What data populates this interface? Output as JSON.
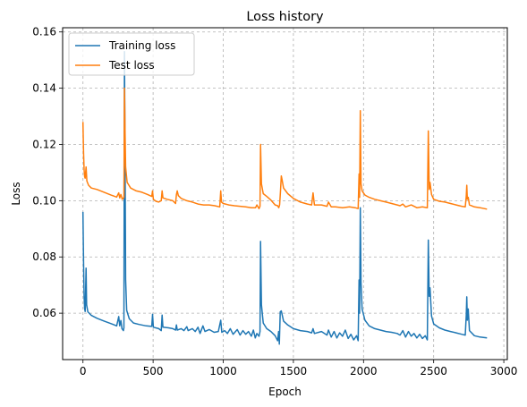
{
  "chart_data": {
    "type": "line",
    "title": "Loss history",
    "xlabel": "Epoch",
    "ylabel": "Loss",
    "xlim": [
      -145,
      3025
    ],
    "ylim": [
      0.0435,
      0.1615
    ],
    "xticks": [
      0,
      500,
      1000,
      1500,
      2000,
      2500,
      3000
    ],
    "xtick_labels": [
      "0",
      "500",
      "1000",
      "1500",
      "2000",
      "2500",
      "3000"
    ],
    "yticks": [
      0.06,
      0.08,
      0.1,
      0.12,
      0.14,
      0.16
    ],
    "ytick_labels": [
      "0.06",
      "0.08",
      "0.10",
      "0.12",
      "0.14",
      "0.16"
    ],
    "grid": true,
    "legend_position": "top-left",
    "colors": {
      "Training loss": "#1f77b4",
      "Test loss": "#ff7f0e"
    },
    "series": [
      {
        "name": "Training loss",
        "color": "#1f77b4",
        "points": [
          [
            0,
            0.096
          ],
          [
            4,
            0.078
          ],
          [
            8,
            0.066
          ],
          [
            12,
            0.0615
          ],
          [
            16,
            0.0606
          ],
          [
            22,
            0.076
          ],
          [
            26,
            0.063
          ],
          [
            35,
            0.0605
          ],
          [
            60,
            0.0592
          ],
          [
            100,
            0.0582
          ],
          [
            150,
            0.0572
          ],
          [
            200,
            0.0563
          ],
          [
            240,
            0.0555
          ],
          [
            255,
            0.0588
          ],
          [
            262,
            0.0555
          ],
          [
            270,
            0.0574
          ],
          [
            278,
            0.0545
          ],
          [
            288,
            0.0538
          ],
          [
            292,
            0.0548
          ],
          [
            296,
            0.153
          ],
          [
            300,
            0.115
          ],
          [
            304,
            0.072
          ],
          [
            312,
            0.061
          ],
          [
            330,
            0.058
          ],
          [
            360,
            0.0565
          ],
          [
            400,
            0.056
          ],
          [
            450,
            0.0555
          ],
          [
            490,
            0.0553
          ],
          [
            496,
            0.0596
          ],
          [
            502,
            0.055
          ],
          [
            540,
            0.0545
          ],
          [
            558,
            0.0538
          ],
          [
            564,
            0.0593
          ],
          [
            570,
            0.055
          ],
          [
            610,
            0.0548
          ],
          [
            640,
            0.0545
          ],
          [
            660,
            0.054
          ],
          [
            666,
            0.0558
          ],
          [
            672,
            0.054
          ],
          [
            700,
            0.0545
          ],
          [
            720,
            0.0538
          ],
          [
            740,
            0.0552
          ],
          [
            750,
            0.0538
          ],
          [
            780,
            0.0545
          ],
          [
            800,
            0.0535
          ],
          [
            820,
            0.055
          ],
          [
            835,
            0.0528
          ],
          [
            855,
            0.0555
          ],
          [
            870,
            0.0535
          ],
          [
            900,
            0.0542
          ],
          [
            935,
            0.0532
          ],
          [
            965,
            0.0535
          ],
          [
            982,
            0.0575
          ],
          [
            990,
            0.0532
          ],
          [
            1010,
            0.0538
          ],
          [
            1030,
            0.0528
          ],
          [
            1050,
            0.0545
          ],
          [
            1070,
            0.0525
          ],
          [
            1100,
            0.0542
          ],
          [
            1120,
            0.0522
          ],
          [
            1140,
            0.0538
          ],
          [
            1160,
            0.0525
          ],
          [
            1180,
            0.0535
          ],
          [
            1200,
            0.0518
          ],
          [
            1215,
            0.054
          ],
          [
            1228,
            0.0512
          ],
          [
            1240,
            0.0528
          ],
          [
            1255,
            0.0518
          ],
          [
            1262,
            0.0535
          ],
          [
            1266,
            0.0855
          ],
          [
            1272,
            0.063
          ],
          [
            1285,
            0.0565
          ],
          [
            1310,
            0.0545
          ],
          [
            1340,
            0.0535
          ],
          [
            1370,
            0.052
          ],
          [
            1388,
            0.0502
          ],
          [
            1395,
            0.0535
          ],
          [
            1400,
            0.049
          ],
          [
            1406,
            0.0605
          ],
          [
            1414,
            0.0608
          ],
          [
            1430,
            0.0572
          ],
          [
            1460,
            0.0558
          ],
          [
            1500,
            0.0545
          ],
          [
            1550,
            0.0538
          ],
          [
            1600,
            0.0535
          ],
          [
            1630,
            0.053
          ],
          [
            1640,
            0.0545
          ],
          [
            1650,
            0.0528
          ],
          [
            1700,
            0.0535
          ],
          [
            1740,
            0.0522
          ],
          [
            1750,
            0.054
          ],
          [
            1770,
            0.0515
          ],
          [
            1790,
            0.0535
          ],
          [
            1810,
            0.0512
          ],
          [
            1830,
            0.053
          ],
          [
            1850,
            0.0518
          ],
          [
            1870,
            0.054
          ],
          [
            1890,
            0.051
          ],
          [
            1910,
            0.0525
          ],
          [
            1930,
            0.0505
          ],
          [
            1950,
            0.052
          ],
          [
            1962,
            0.0502
          ],
          [
            1968,
            0.0718
          ],
          [
            1972,
            0.06
          ],
          [
            1977,
            0.0975
          ],
          [
            1982,
            0.071
          ],
          [
            1990,
            0.0615
          ],
          [
            2010,
            0.0575
          ],
          [
            2040,
            0.0555
          ],
          [
            2080,
            0.0545
          ],
          [
            2120,
            0.054
          ],
          [
            2160,
            0.0535
          ],
          [
            2200,
            0.0532
          ],
          [
            2240,
            0.0528
          ],
          [
            2260,
            0.0522
          ],
          [
            2280,
            0.0538
          ],
          [
            2300,
            0.0515
          ],
          [
            2320,
            0.0535
          ],
          [
            2340,
            0.0518
          ],
          [
            2360,
            0.0528
          ],
          [
            2380,
            0.0512
          ],
          [
            2400,
            0.0525
          ],
          [
            2420,
            0.051
          ],
          [
            2440,
            0.052
          ],
          [
            2455,
            0.0505
          ],
          [
            2462,
            0.086
          ],
          [
            2468,
            0.066
          ],
          [
            2474,
            0.069
          ],
          [
            2485,
            0.059
          ],
          [
            2500,
            0.0562
          ],
          [
            2540,
            0.0548
          ],
          [
            2580,
            0.054
          ],
          [
            2620,
            0.0535
          ],
          [
            2660,
            0.053
          ],
          [
            2700,
            0.0525
          ],
          [
            2725,
            0.0522
          ],
          [
            2732,
            0.0592
          ],
          [
            2736,
            0.0658
          ],
          [
            2740,
            0.0575
          ],
          [
            2746,
            0.0615
          ],
          [
            2755,
            0.0538
          ],
          [
            2790,
            0.052
          ],
          [
            2830,
            0.0515
          ],
          [
            2880,
            0.0512
          ]
        ]
      },
      {
        "name": "Test loss",
        "color": "#ff7f0e",
        "points": [
          [
            0,
            0.128
          ],
          [
            4,
            0.117
          ],
          [
            8,
            0.111
          ],
          [
            12,
            0.1085
          ],
          [
            16,
            0.108
          ],
          [
            22,
            0.112
          ],
          [
            28,
            0.107
          ],
          [
            40,
            0.1055
          ],
          [
            60,
            0.1045
          ],
          [
            100,
            0.104
          ],
          [
            150,
            0.103
          ],
          [
            200,
            0.102
          ],
          [
            240,
            0.1013
          ],
          [
            255,
            0.1028
          ],
          [
            262,
            0.101
          ],
          [
            270,
            0.1022
          ],
          [
            280,
            0.1005
          ],
          [
            292,
            0.1012
          ],
          [
            296,
            0.14
          ],
          [
            300,
            0.124
          ],
          [
            304,
            0.112
          ],
          [
            315,
            0.1065
          ],
          [
            340,
            0.1045
          ],
          [
            380,
            0.1035
          ],
          [
            420,
            0.103
          ],
          [
            460,
            0.1022
          ],
          [
            490,
            0.1015
          ],
          [
            496,
            0.1035
          ],
          [
            502,
            0.1005
          ],
          [
            520,
            0.0998
          ],
          [
            540,
            0.0995
          ],
          [
            558,
            0.1
          ],
          [
            564,
            0.1035
          ],
          [
            570,
            0.101
          ],
          [
            600,
            0.1005
          ],
          [
            640,
            0.1
          ],
          [
            660,
            0.099
          ],
          [
            666,
            0.1022
          ],
          [
            672,
            0.1035
          ],
          [
            680,
            0.1018
          ],
          [
            700,
            0.1008
          ],
          [
            740,
            0.1
          ],
          [
            780,
            0.0995
          ],
          [
            820,
            0.0988
          ],
          [
            860,
            0.0985
          ],
          [
            900,
            0.0985
          ],
          [
            940,
            0.0982
          ],
          [
            975,
            0.0978
          ],
          [
            982,
            0.1035
          ],
          [
            988,
            0.0995
          ],
          [
            1000,
            0.099
          ],
          [
            1040,
            0.0985
          ],
          [
            1080,
            0.0982
          ],
          [
            1120,
            0.098
          ],
          [
            1160,
            0.0978
          ],
          [
            1200,
            0.0975
          ],
          [
            1230,
            0.0975
          ],
          [
            1240,
            0.0985
          ],
          [
            1255,
            0.0972
          ],
          [
            1262,
            0.098
          ],
          [
            1266,
            0.12
          ],
          [
            1272,
            0.106
          ],
          [
            1285,
            0.1025
          ],
          [
            1310,
            0.1015
          ],
          [
            1340,
            0.1002
          ],
          [
            1370,
            0.0985
          ],
          [
            1388,
            0.0982
          ],
          [
            1396,
            0.0975
          ],
          [
            1402,
            0.0985
          ],
          [
            1408,
            0.1035
          ],
          [
            1414,
            0.1088
          ],
          [
            1420,
            0.1072
          ],
          [
            1430,
            0.1045
          ],
          [
            1460,
            0.1025
          ],
          [
            1500,
            0.1008
          ],
          [
            1550,
            0.0995
          ],
          [
            1600,
            0.0988
          ],
          [
            1630,
            0.0985
          ],
          [
            1640,
            0.1028
          ],
          [
            1650,
            0.0985
          ],
          [
            1700,
            0.0985
          ],
          [
            1740,
            0.098
          ],
          [
            1750,
            0.0995
          ],
          [
            1770,
            0.0978
          ],
          [
            1800,
            0.0978
          ],
          [
            1850,
            0.0975
          ],
          [
            1900,
            0.0978
          ],
          [
            1940,
            0.0975
          ],
          [
            1962,
            0.0972
          ],
          [
            1968,
            0.1095
          ],
          [
            1972,
            0.1012
          ],
          [
            1977,
            0.132
          ],
          [
            1982,
            0.106
          ],
          [
            1990,
            0.1035
          ],
          [
            2010,
            0.102
          ],
          [
            2040,
            0.1012
          ],
          [
            2080,
            0.1005
          ],
          [
            2120,
            0.1
          ],
          [
            2160,
            0.0995
          ],
          [
            2200,
            0.099
          ],
          [
            2240,
            0.0985
          ],
          [
            2260,
            0.0982
          ],
          [
            2280,
            0.0988
          ],
          [
            2300,
            0.0978
          ],
          [
            2340,
            0.0985
          ],
          [
            2380,
            0.0975
          ],
          [
            2420,
            0.0978
          ],
          [
            2455,
            0.0975
          ],
          [
            2462,
            0.1248
          ],
          [
            2468,
            0.104
          ],
          [
            2474,
            0.1065
          ],
          [
            2485,
            0.1022
          ],
          [
            2500,
            0.1005
          ],
          [
            2540,
            0.0998
          ],
          [
            2580,
            0.0995
          ],
          [
            2620,
            0.099
          ],
          [
            2660,
            0.0985
          ],
          [
            2700,
            0.098
          ],
          [
            2725,
            0.0978
          ],
          [
            2732,
            0.1015
          ],
          [
            2736,
            0.1055
          ],
          [
            2740,
            0.1005
          ],
          [
            2746,
            0.1012
          ],
          [
            2755,
            0.0985
          ],
          [
            2790,
            0.0978
          ],
          [
            2830,
            0.0975
          ],
          [
            2880,
            0.097
          ]
        ]
      }
    ]
  }
}
